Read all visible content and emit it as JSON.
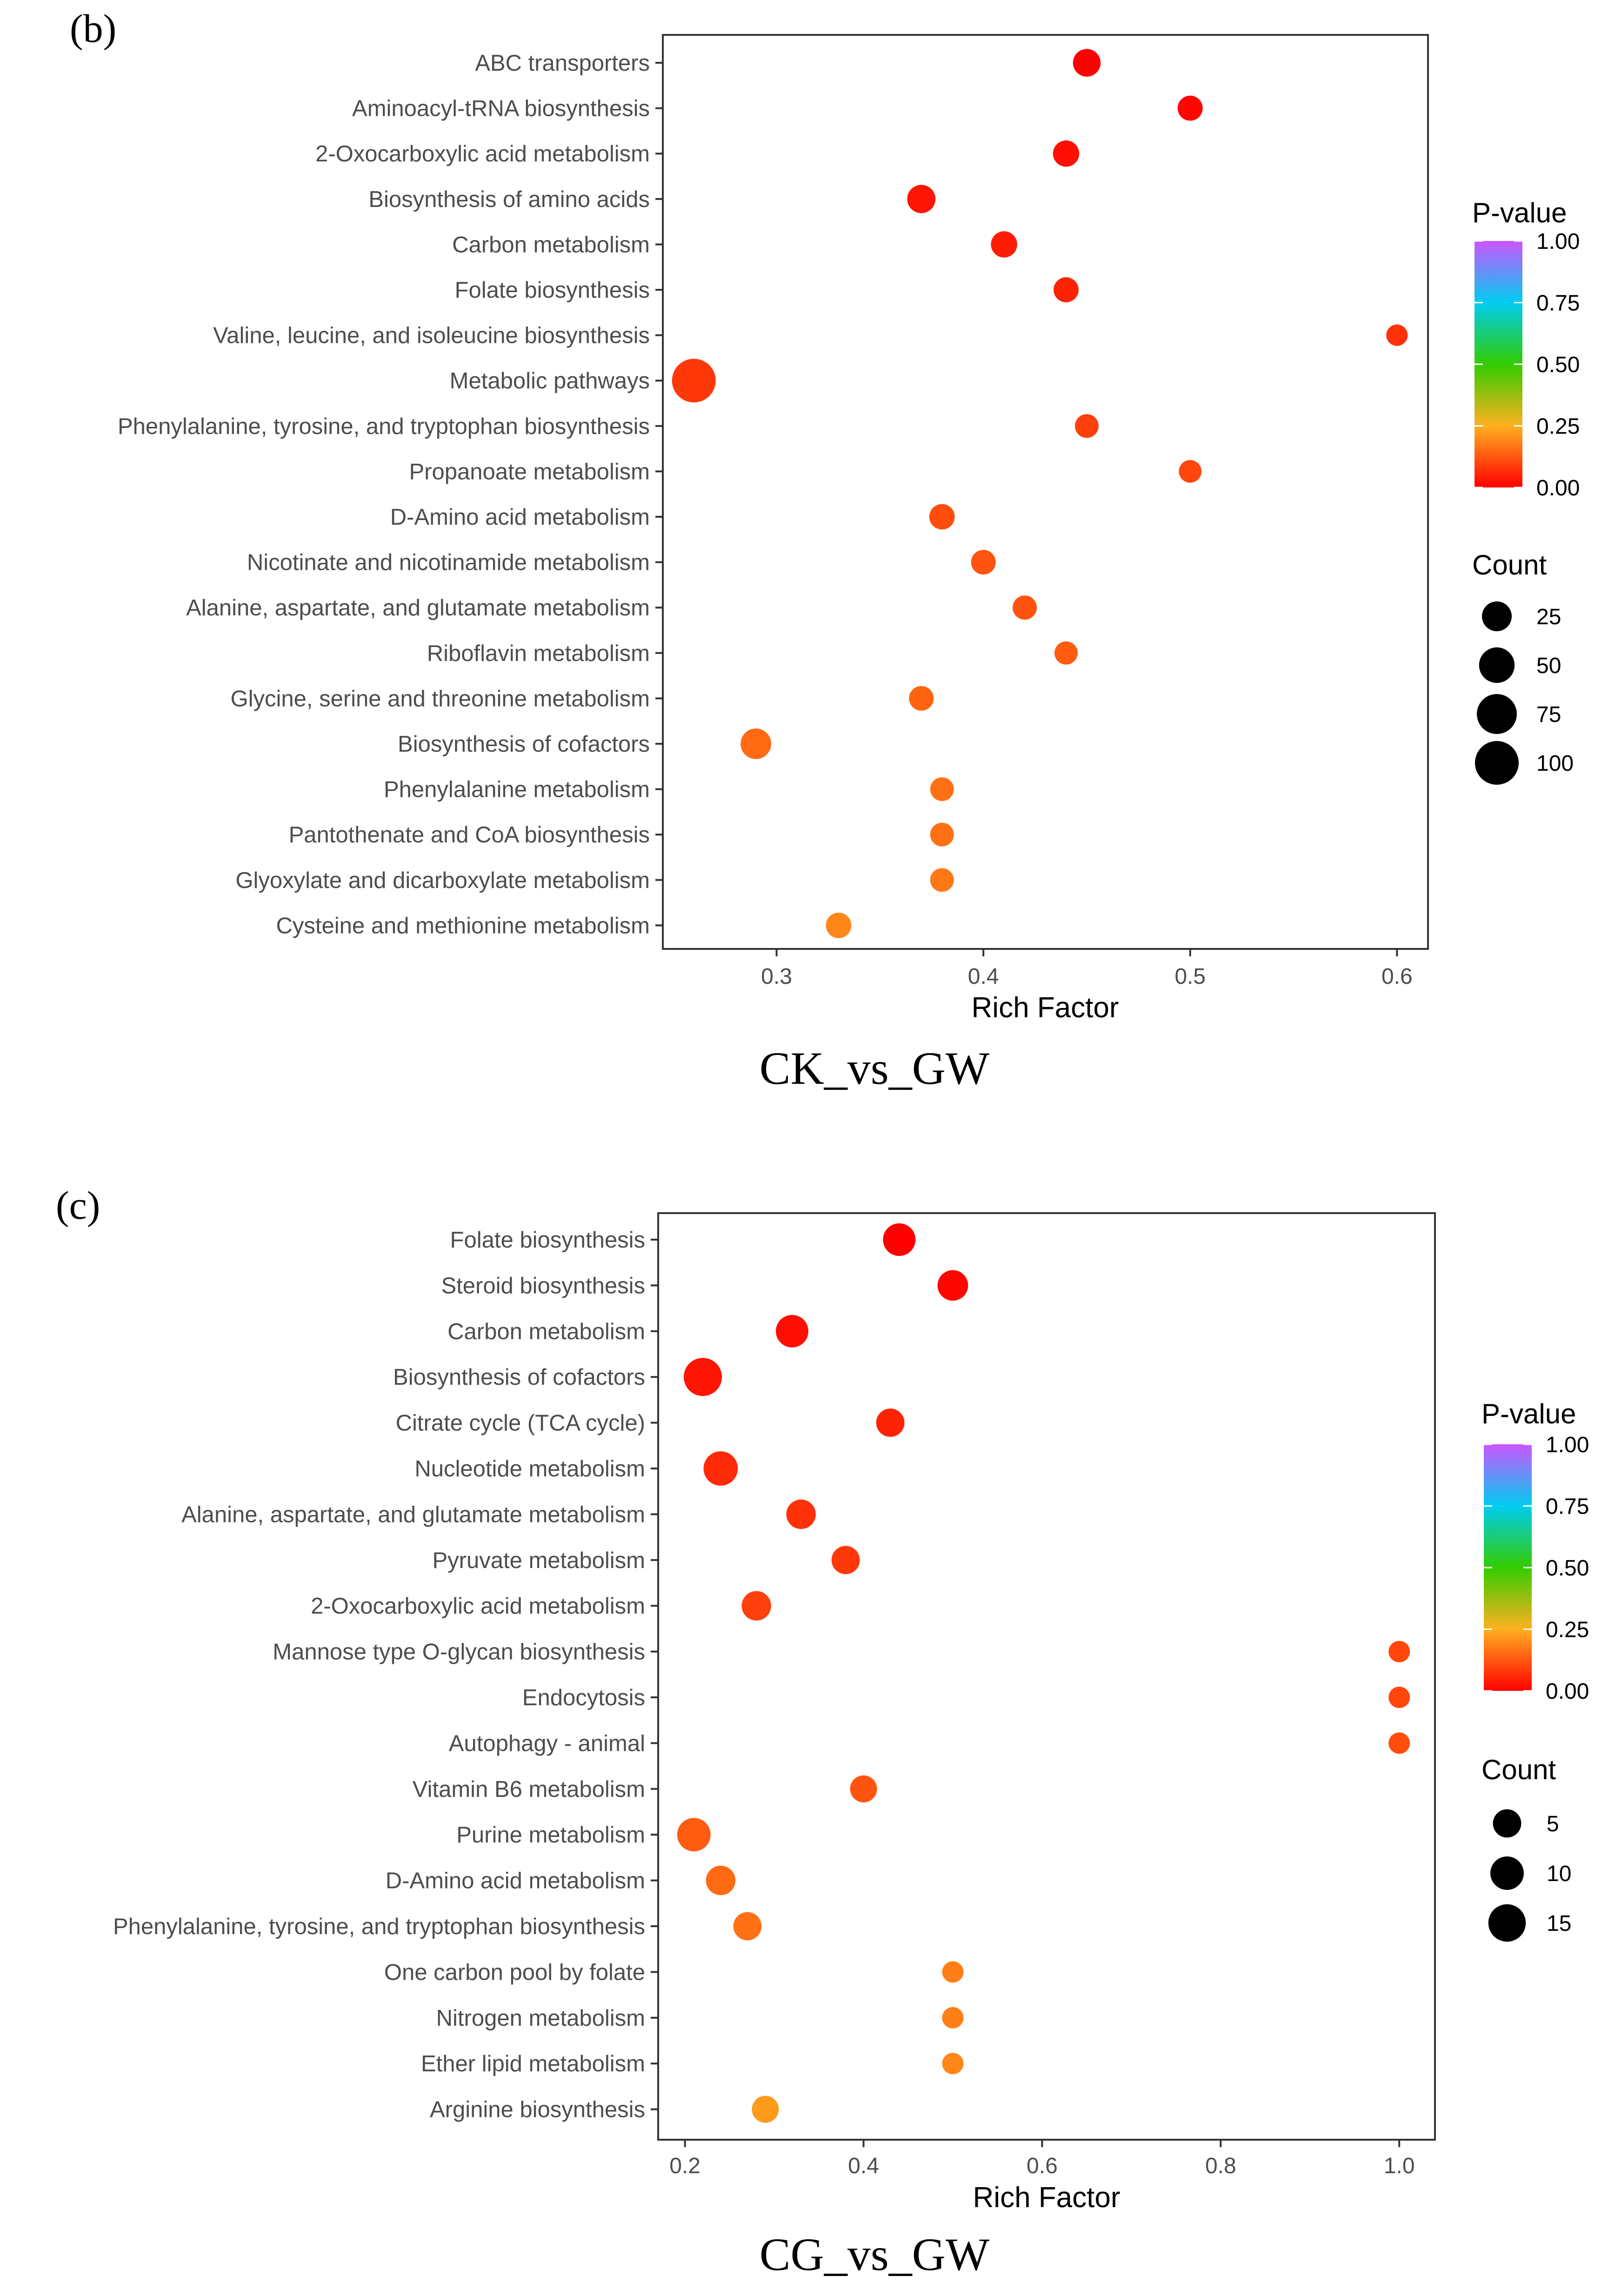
{
  "chart_data": [
    {
      "panel_label": "(b)",
      "type": "scatter",
      "subtype": "bubble",
      "title": "CK_vs_GW",
      "xlabel": "Rich Factor",
      "ylabel": "",
      "xlim": [
        0.245,
        0.615
      ],
      "x_ticks": [
        0.3,
        0.4,
        0.5,
        0.6
      ],
      "x_tick_labels": [
        "0.3",
        "0.4",
        "0.5",
        "0.6"
      ],
      "grid": false,
      "color_legend": {
        "title": "P-value",
        "ticks": [
          "1.00",
          "0.75",
          "0.50",
          "0.25",
          "0.00"
        ]
      },
      "size_legend": {
        "title": "Count",
        "values": [
          25,
          50,
          75,
          100
        ],
        "labels": [
          "25",
          "50",
          "75",
          "100"
        ]
      },
      "categories": [
        "ABC transporters",
        "Aminoacyl-tRNA biosynthesis",
        "2-Oxocarboxylic acid metabolism",
        "Biosynthesis of amino acids",
        "Carbon metabolism",
        "Folate biosynthesis",
        "Valine, leucine, and isoleucine biosynthesis",
        "Metabolic pathways",
        "Phenylalanine, tyrosine, and tryptophan biosynthesis",
        "Propanoate metabolism",
        "D-Amino acid metabolism",
        "Nicotinate and nicotinamide metabolism",
        "Alanine, aspartate, and glutamate metabolism",
        "Riboflavin metabolism",
        "Glycine, serine and threonine metabolism",
        "Biosynthesis of cofactors",
        "Phenylalanine metabolism",
        "Pantothenate and CoA biosynthesis",
        "Glyoxylate and dicarboxylate metabolism",
        "Cysteine and methionine metabolism"
      ],
      "rich_factor": [
        0.45,
        0.5,
        0.44,
        0.37,
        0.41,
        0.44,
        0.6,
        0.26,
        0.45,
        0.5,
        0.38,
        0.4,
        0.42,
        0.44,
        0.37,
        0.29,
        0.38,
        0.38,
        0.38,
        0.33
      ],
      "count": [
        18,
        11,
        14,
        20,
        14,
        11,
        4,
        100,
        8,
        6,
        12,
        10,
        9,
        7,
        10,
        28,
        8,
        8,
        8,
        12
      ],
      "p_value": [
        0.0,
        0.01,
        0.02,
        0.03,
        0.04,
        0.05,
        0.07,
        0.08,
        0.09,
        0.1,
        0.11,
        0.12,
        0.12,
        0.13,
        0.14,
        0.15,
        0.16,
        0.16,
        0.17,
        0.19
      ]
    },
    {
      "panel_label": "(c)",
      "type": "scatter",
      "subtype": "bubble",
      "title": "CG_vs_GW",
      "xlabel": "Rich Factor",
      "ylabel": "",
      "xlim": [
        0.17,
        1.04
      ],
      "x_ticks": [
        0.2,
        0.4,
        0.6,
        0.8,
        1.0
      ],
      "x_tick_labels": [
        "0.2",
        "0.4",
        "0.6",
        "0.8",
        "1.0"
      ],
      "grid": false,
      "color_legend": {
        "title": "P-value",
        "ticks": [
          "1.00",
          "0.75",
          "0.50",
          "0.25",
          "0.00"
        ]
      },
      "size_legend": {
        "title": "Count",
        "values": [
          5,
          10,
          15
        ],
        "labels": [
          "5",
          "10",
          "15"
        ]
      },
      "categories": [
        "Folate biosynthesis",
        "Steroid biosynthesis",
        "Carbon metabolism",
        "Biosynthesis of cofactors",
        "Citrate cycle (TCA cycle)",
        "Nucleotide metabolism",
        "Alanine, aspartate, and glutamate metabolism",
        "Pyruvate metabolism",
        "2-Oxocarboxylic acid metabolism",
        "Mannose type O-glycan biosynthesis",
        "Endocytosis",
        "Autophagy - animal",
        "Vitamin B6 metabolism",
        "Purine metabolism",
        "D-Amino acid metabolism",
        "Phenylalanine, tyrosine, and tryptophan biosynthesis",
        "One carbon pool by folate",
        "Nitrogen metabolism",
        "Ether lipid metabolism",
        "Arginine biosynthesis"
      ],
      "rich_factor": [
        0.44,
        0.5,
        0.32,
        0.22,
        0.43,
        0.24,
        0.33,
        0.38,
        0.28,
        1.0,
        1.0,
        1.0,
        0.4,
        0.21,
        0.24,
        0.27,
        0.5,
        0.5,
        0.5,
        0.29
      ],
      "count": [
        9,
        7,
        9,
        16,
        5,
        11,
        6,
        5,
        6,
        1,
        1,
        1,
        4,
        10,
        6,
        5,
        1,
        1,
        1,
        4
      ],
      "p_value": [
        0.0,
        0.01,
        0.02,
        0.03,
        0.05,
        0.06,
        0.07,
        0.08,
        0.09,
        0.1,
        0.1,
        0.11,
        0.12,
        0.13,
        0.15,
        0.16,
        0.18,
        0.18,
        0.19,
        0.22
      ]
    }
  ]
}
